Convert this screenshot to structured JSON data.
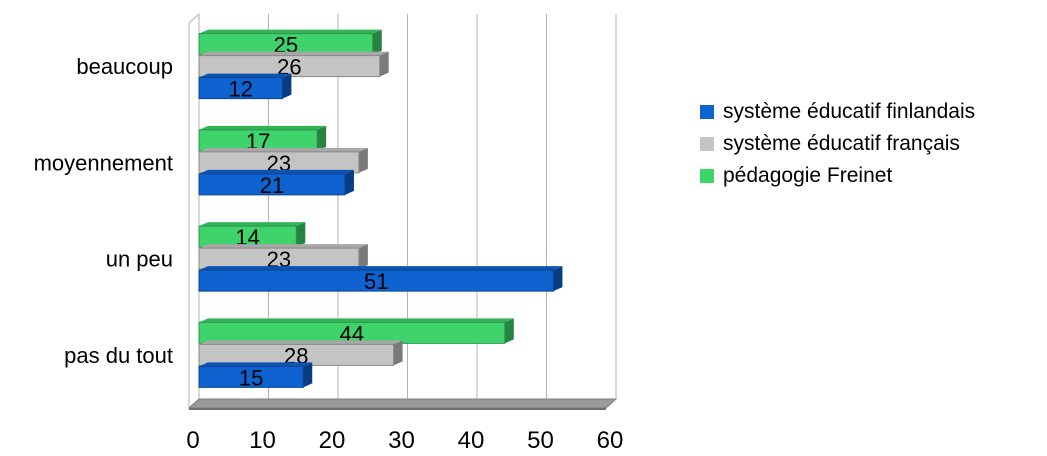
{
  "chart_data": {
    "type": "bar",
    "orientation": "horizontal",
    "three_d": true,
    "title": "",
    "xlabel": "",
    "ylabel": "",
    "categories": [
      "pas du tout",
      "un peu",
      "moyennement",
      "beaucoup"
    ],
    "series": [
      {
        "name": "système éducatif finlandais",
        "color": "#0f63d1",
        "values": [
          15,
          51,
          21,
          12
        ]
      },
      {
        "name": "système éducatif français",
        "color": "#c4c4c4",
        "values": [
          28,
          23,
          23,
          26
        ]
      },
      {
        "name": "pédagogie Freinet",
        "color": "#3ed36b",
        "values": [
          44,
          14,
          17,
          25
        ]
      }
    ],
    "xlim": [
      0,
      60
    ],
    "xticks": [
      "0",
      "10",
      "20",
      "30",
      "40",
      "50",
      "60"
    ],
    "grid": true,
    "legend_position": "right",
    "data_labels": true
  }
}
